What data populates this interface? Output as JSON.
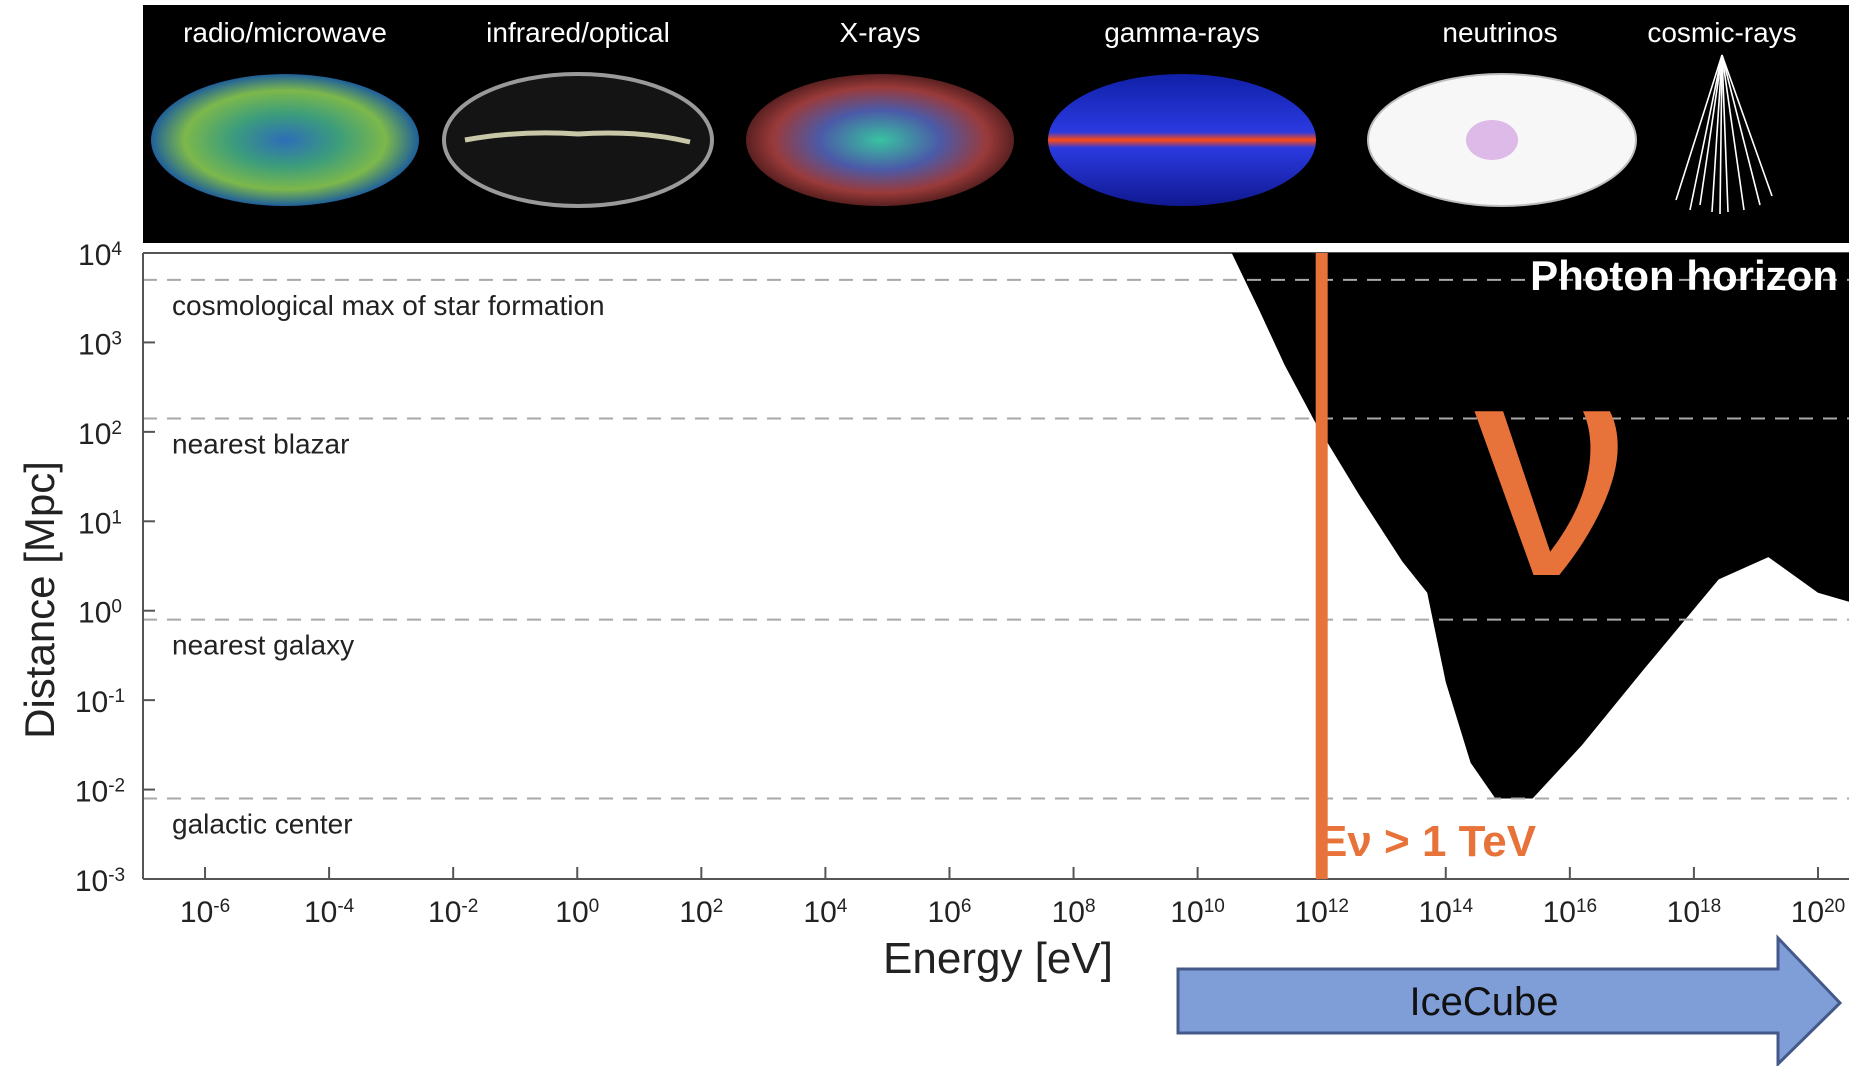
{
  "banner": {
    "labels": [
      "radio/microwave",
      "infrared/optical",
      "X-rays",
      "gamma-rays",
      "neutrinos",
      "cosmic-rays"
    ]
  },
  "chart_data": {
    "type": "area",
    "xlabel": "Energy [eV]",
    "ylabel": "Distance [Mpc]",
    "xscale": "log",
    "yscale": "log",
    "xlim": [
      -7,
      20.5
    ],
    "ylim": [
      -3,
      4
    ],
    "x_ticks": [
      -6,
      -4,
      -2,
      0,
      2,
      4,
      6,
      8,
      10,
      12,
      14,
      16,
      18,
      20
    ],
    "y_ticks": [
      4,
      3,
      2,
      1,
      0,
      -1,
      -2,
      -3
    ],
    "reference_lines": [
      {
        "label": "cosmological max of star formation",
        "y_log10": 3.7
      },
      {
        "label": "nearest blazar",
        "y_log10": 2.15
      },
      {
        "label": "nearest galaxy",
        "y_log10": -0.1
      },
      {
        "label": "galactic center",
        "y_log10": -2.1
      }
    ],
    "horizon_label": "Photon horizon",
    "horizon_boundary_log10": [
      [
        10.55,
        4.0
      ],
      [
        11.0,
        3.35
      ],
      [
        11.4,
        2.75
      ],
      [
        11.9,
        2.1
      ],
      [
        12.6,
        1.3
      ],
      [
        13.3,
        0.55
      ],
      [
        13.7,
        0.2
      ],
      [
        14.0,
        -0.8
      ],
      [
        14.4,
        -1.7
      ],
      [
        14.8,
        -2.1
      ],
      [
        15.4,
        -2.1
      ],
      [
        16.2,
        -1.5
      ],
      [
        17.2,
        -0.65
      ],
      [
        18.4,
        0.35
      ],
      [
        19.2,
        0.6
      ],
      [
        20.0,
        0.2
      ],
      [
        20.5,
        0.1
      ]
    ],
    "symbol": "ν",
    "threshold": {
      "label": "Eν > 1 TeV",
      "x_log10": 12
    },
    "arrow": {
      "label": "IceCube"
    },
    "colors": {
      "horizon": "#000000",
      "accent": "#e8733a",
      "arrow_fill": "#7f9dd6",
      "arrow_stroke": "#44598a",
      "grid": "#a8a8a8"
    }
  }
}
